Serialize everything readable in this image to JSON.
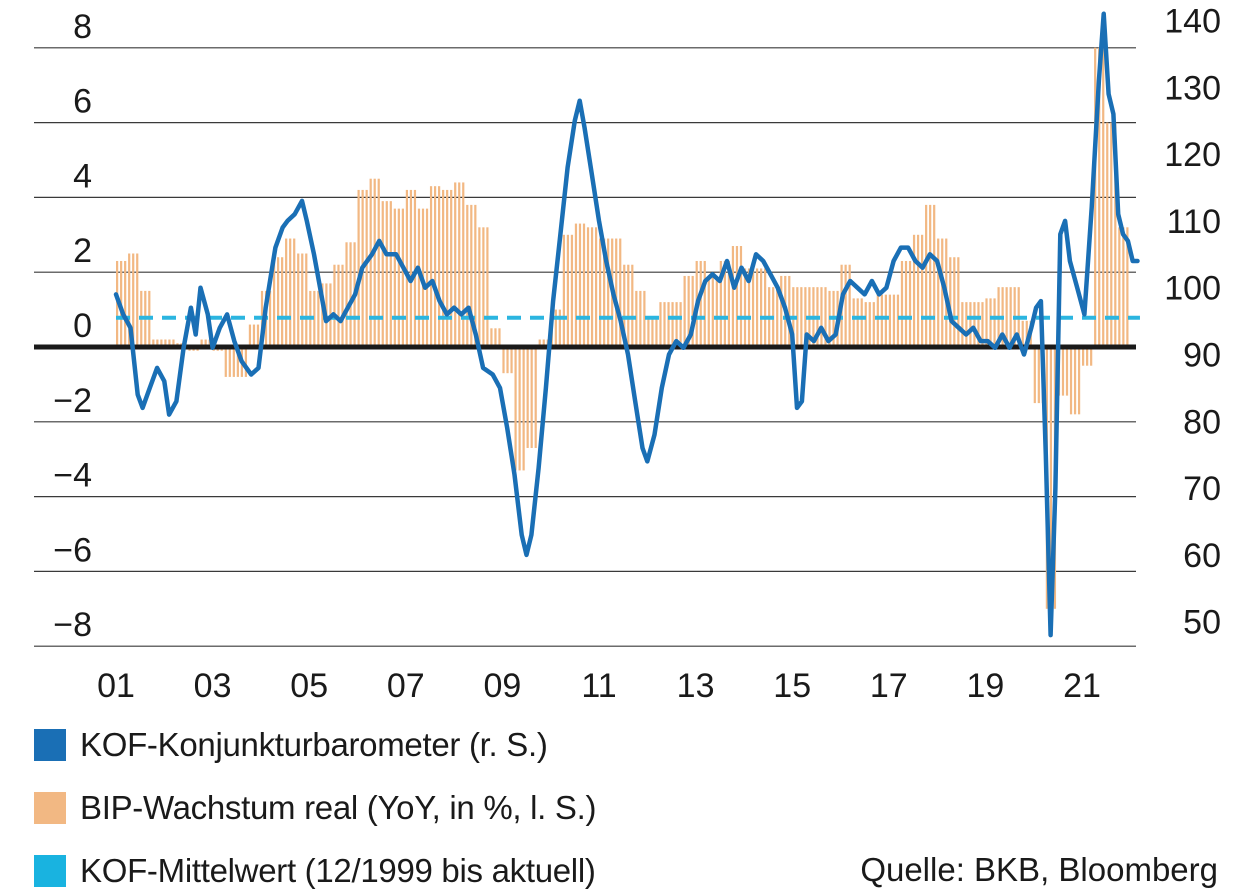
{
  "chart_data": {
    "type": "bar+line",
    "title": "",
    "x_ticks": [
      "01",
      "03",
      "05",
      "07",
      "09",
      "11",
      "13",
      "15",
      "17",
      "19",
      "21"
    ],
    "y_left": {
      "ticks": [
        8,
        6,
        4,
        2,
        0,
        -2,
        -4,
        -6,
        -8
      ],
      "tick_labels": [
        "8",
        "6",
        "4",
        "2",
        "0",
        "−2",
        "−4",
        "−6",
        "−8"
      ],
      "range": [
        -8,
        8
      ]
    },
    "y_right": {
      "ticks": [
        140,
        130,
        120,
        110,
        100,
        90,
        80,
        70,
        60,
        50
      ],
      "range": [
        47,
        143
      ]
    },
    "grid": true,
    "bip_growth": {
      "name": "BIP-Wachstum real (YoY, in %, l. S.)",
      "color": "#f2b883",
      "quarters": [
        [
          2001.0,
          2.3
        ],
        [
          2001.25,
          2.5
        ],
        [
          2001.5,
          1.5
        ],
        [
          2001.75,
          0.2
        ],
        [
          2002.0,
          0.2
        ],
        [
          2002.25,
          0.1
        ],
        [
          2002.5,
          -0.1
        ],
        [
          2002.75,
          0.2
        ],
        [
          2003.0,
          -0.1
        ],
        [
          2003.25,
          -0.8
        ],
        [
          2003.5,
          -0.8
        ],
        [
          2003.75,
          0.6
        ],
        [
          2004.0,
          1.5
        ],
        [
          2004.25,
          2.4
        ],
        [
          2004.5,
          2.9
        ],
        [
          2004.75,
          2.5
        ],
        [
          2005.0,
          1.5
        ],
        [
          2005.25,
          1.7
        ],
        [
          2005.5,
          2.2
        ],
        [
          2005.75,
          2.8
        ],
        [
          2006.0,
          4.2
        ],
        [
          2006.25,
          4.5
        ],
        [
          2006.5,
          3.9
        ],
        [
          2006.75,
          3.7
        ],
        [
          2007.0,
          4.2
        ],
        [
          2007.25,
          3.7
        ],
        [
          2007.5,
          4.3
        ],
        [
          2007.75,
          4.2
        ],
        [
          2008.0,
          4.4
        ],
        [
          2008.25,
          3.8
        ],
        [
          2008.5,
          3.2
        ],
        [
          2008.75,
          0.5
        ],
        [
          2009.0,
          -0.7
        ],
        [
          2009.25,
          -3.3
        ],
        [
          2009.5,
          -2.7
        ],
        [
          2009.75,
          0.2
        ],
        [
          2010.0,
          1.0
        ],
        [
          2010.25,
          3.0
        ],
        [
          2010.5,
          3.3
        ],
        [
          2010.75,
          3.2
        ],
        [
          2011.0,
          2.9
        ],
        [
          2011.25,
          2.9
        ],
        [
          2011.5,
          2.2
        ],
        [
          2011.75,
          1.5
        ],
        [
          2012.0,
          0.8
        ],
        [
          2012.25,
          1.2
        ],
        [
          2012.5,
          1.2
        ],
        [
          2012.75,
          1.9
        ],
        [
          2013.0,
          2.3
        ],
        [
          2013.25,
          1.9
        ],
        [
          2013.5,
          2.3
        ],
        [
          2013.75,
          2.7
        ],
        [
          2014.0,
          2.1
        ],
        [
          2014.25,
          2.1
        ],
        [
          2014.5,
          1.6
        ],
        [
          2014.75,
          1.9
        ],
        [
          2015.0,
          1.6
        ],
        [
          2015.25,
          1.6
        ],
        [
          2015.5,
          1.6
        ],
        [
          2015.75,
          1.5
        ],
        [
          2016.0,
          2.2
        ],
        [
          2016.25,
          1.3
        ],
        [
          2016.5,
          1.2
        ],
        [
          2016.75,
          1.4
        ],
        [
          2017.0,
          1.4
        ],
        [
          2017.25,
          2.3
        ],
        [
          2017.5,
          3.0
        ],
        [
          2017.75,
          3.8
        ],
        [
          2018.0,
          2.9
        ],
        [
          2018.25,
          2.4
        ],
        [
          2018.5,
          1.2
        ],
        [
          2018.75,
          1.2
        ],
        [
          2019.0,
          1.3
        ],
        [
          2019.25,
          1.6
        ],
        [
          2019.5,
          1.6
        ],
        [
          2019.75,
          0.7
        ],
        [
          2020.0,
          -1.5
        ],
        [
          2020.25,
          -7.0
        ],
        [
          2020.5,
          -1.3
        ],
        [
          2020.75,
          -1.8
        ],
        [
          2021.0,
          -0.5
        ],
        [
          2021.25,
          8.0
        ],
        [
          2021.5,
          6.0
        ],
        [
          2021.75,
          3.2
        ]
      ]
    },
    "kof_barometer": {
      "name": "KOF-Konjunkturbarometer (r. S.)",
      "color": "#1a6fb5",
      "points": [
        [
          2001.0,
          99
        ],
        [
          2001.15,
          96
        ],
        [
          2001.3,
          94
        ],
        [
          2001.45,
          84
        ],
        [
          2001.55,
          82
        ],
        [
          2001.7,
          85
        ],
        [
          2001.85,
          88
        ],
        [
          2002.0,
          86
        ],
        [
          2002.1,
          81
        ],
        [
          2002.25,
          83
        ],
        [
          2002.4,
          91
        ],
        [
          2002.55,
          97
        ],
        [
          2002.65,
          93
        ],
        [
          2002.75,
          100
        ],
        [
          2002.9,
          96
        ],
        [
          2003.0,
          91
        ],
        [
          2003.15,
          94
        ],
        [
          2003.3,
          96
        ],
        [
          2003.45,
          92
        ],
        [
          2003.6,
          89
        ],
        [
          2003.8,
          87
        ],
        [
          2003.95,
          88
        ],
        [
          2004.1,
          97
        ],
        [
          2004.3,
          106
        ],
        [
          2004.45,
          109
        ],
        [
          2004.55,
          110
        ],
        [
          2004.7,
          111
        ],
        [
          2004.85,
          113
        ],
        [
          2004.95,
          110
        ],
        [
          2005.1,
          105
        ],
        [
          2005.25,
          99
        ],
        [
          2005.35,
          95
        ],
        [
          2005.5,
          96
        ],
        [
          2005.65,
          95
        ],
        [
          2005.8,
          97
        ],
        [
          2005.95,
          99
        ],
        [
          2006.1,
          103
        ],
        [
          2006.3,
          105
        ],
        [
          2006.45,
          107
        ],
        [
          2006.6,
          105
        ],
        [
          2006.8,
          105
        ],
        [
          2006.95,
          103
        ],
        [
          2007.1,
          101
        ],
        [
          2007.25,
          103
        ],
        [
          2007.4,
          100
        ],
        [
          2007.55,
          101
        ],
        [
          2007.7,
          98
        ],
        [
          2007.85,
          96
        ],
        [
          2008.0,
          97
        ],
        [
          2008.15,
          96
        ],
        [
          2008.3,
          97
        ],
        [
          2008.45,
          93
        ],
        [
          2008.6,
          88
        ],
        [
          2008.8,
          87
        ],
        [
          2008.95,
          85
        ],
        [
          2009.1,
          79
        ],
        [
          2009.25,
          72
        ],
        [
          2009.4,
          63
        ],
        [
          2009.5,
          60
        ],
        [
          2009.6,
          63
        ],
        [
          2009.75,
          73
        ],
        [
          2009.9,
          85
        ],
        [
          2010.05,
          98
        ],
        [
          2010.2,
          108
        ],
        [
          2010.35,
          118
        ],
        [
          2010.5,
          125
        ],
        [
          2010.6,
          128
        ],
        [
          2010.7,
          124
        ],
        [
          2010.85,
          117
        ],
        [
          2011.0,
          110
        ],
        [
          2011.15,
          104
        ],
        [
          2011.3,
          99
        ],
        [
          2011.45,
          95
        ],
        [
          2011.6,
          90
        ],
        [
          2011.75,
          83
        ],
        [
          2011.9,
          76
        ],
        [
          2012.0,
          74
        ],
        [
          2012.15,
          78
        ],
        [
          2012.3,
          85
        ],
        [
          2012.45,
          90
        ],
        [
          2012.6,
          92
        ],
        [
          2012.75,
          91
        ],
        [
          2012.9,
          93
        ],
        [
          2013.05,
          98
        ],
        [
          2013.2,
          101
        ],
        [
          2013.35,
          102
        ],
        [
          2013.5,
          101
        ],
        [
          2013.65,
          104
        ],
        [
          2013.8,
          100
        ],
        [
          2013.95,
          103
        ],
        [
          2014.1,
          101
        ],
        [
          2014.25,
          105
        ],
        [
          2014.4,
          104
        ],
        [
          2014.55,
          102
        ],
        [
          2014.7,
          100
        ],
        [
          2014.85,
          97
        ],
        [
          2015.0,
          93
        ],
        [
          2015.1,
          82
        ],
        [
          2015.2,
          83
        ],
        [
          2015.3,
          93
        ],
        [
          2015.45,
          92
        ],
        [
          2015.6,
          94
        ],
        [
          2015.75,
          92
        ],
        [
          2015.9,
          93
        ],
        [
          2016.05,
          99
        ],
        [
          2016.2,
          101
        ],
        [
          2016.35,
          100
        ],
        [
          2016.5,
          99
        ],
        [
          2016.65,
          101
        ],
        [
          2016.8,
          99
        ],
        [
          2016.95,
          100
        ],
        [
          2017.1,
          104
        ],
        [
          2017.25,
          106
        ],
        [
          2017.4,
          106
        ],
        [
          2017.55,
          104
        ],
        [
          2017.7,
          103
        ],
        [
          2017.85,
          105
        ],
        [
          2018.0,
          104
        ],
        [
          2018.15,
          100
        ],
        [
          2018.3,
          95
        ],
        [
          2018.45,
          94
        ],
        [
          2018.6,
          93
        ],
        [
          2018.75,
          94
        ],
        [
          2018.9,
          92
        ],
        [
          2019.05,
          92
        ],
        [
          2019.2,
          91
        ],
        [
          2019.35,
          93
        ],
        [
          2019.5,
          91
        ],
        [
          2019.65,
          93
        ],
        [
          2019.8,
          90
        ],
        [
          2019.95,
          94
        ],
        [
          2020.05,
          97
        ],
        [
          2020.15,
          98
        ],
        [
          2020.25,
          75
        ],
        [
          2020.35,
          48
        ],
        [
          2020.45,
          70
        ],
        [
          2020.55,
          108
        ],
        [
          2020.65,
          110
        ],
        [
          2020.75,
          104
        ],
        [
          2020.9,
          100
        ],
        [
          2021.05,
          96
        ],
        [
          2021.2,
          112
        ],
        [
          2021.35,
          131
        ],
        [
          2021.45,
          141
        ],
        [
          2021.55,
          129
        ],
        [
          2021.65,
          126
        ],
        [
          2021.75,
          111
        ],
        [
          2021.85,
          108
        ],
        [
          2021.95,
          107
        ],
        [
          2022.05,
          104
        ],
        [
          2022.15,
          104
        ]
      ]
    },
    "kof_mean": {
      "name": "KOF-Mittelwert (12/1999 bis aktuell)",
      "color": "#2bb5e0",
      "value": 95.5
    }
  },
  "legend": [
    {
      "label": "KOF-Konjunkturbarometer (r. S.)",
      "color": "#1a6fb5"
    },
    {
      "label": "BIP-Wachstum real (YoY, in %, l. S.)",
      "color": "#f2b883"
    },
    {
      "label": "KOF-Mittelwert (12/1999 bis aktuell)",
      "color": "#19b3e0"
    }
  ],
  "source": "Quelle: BKB, Bloomberg"
}
